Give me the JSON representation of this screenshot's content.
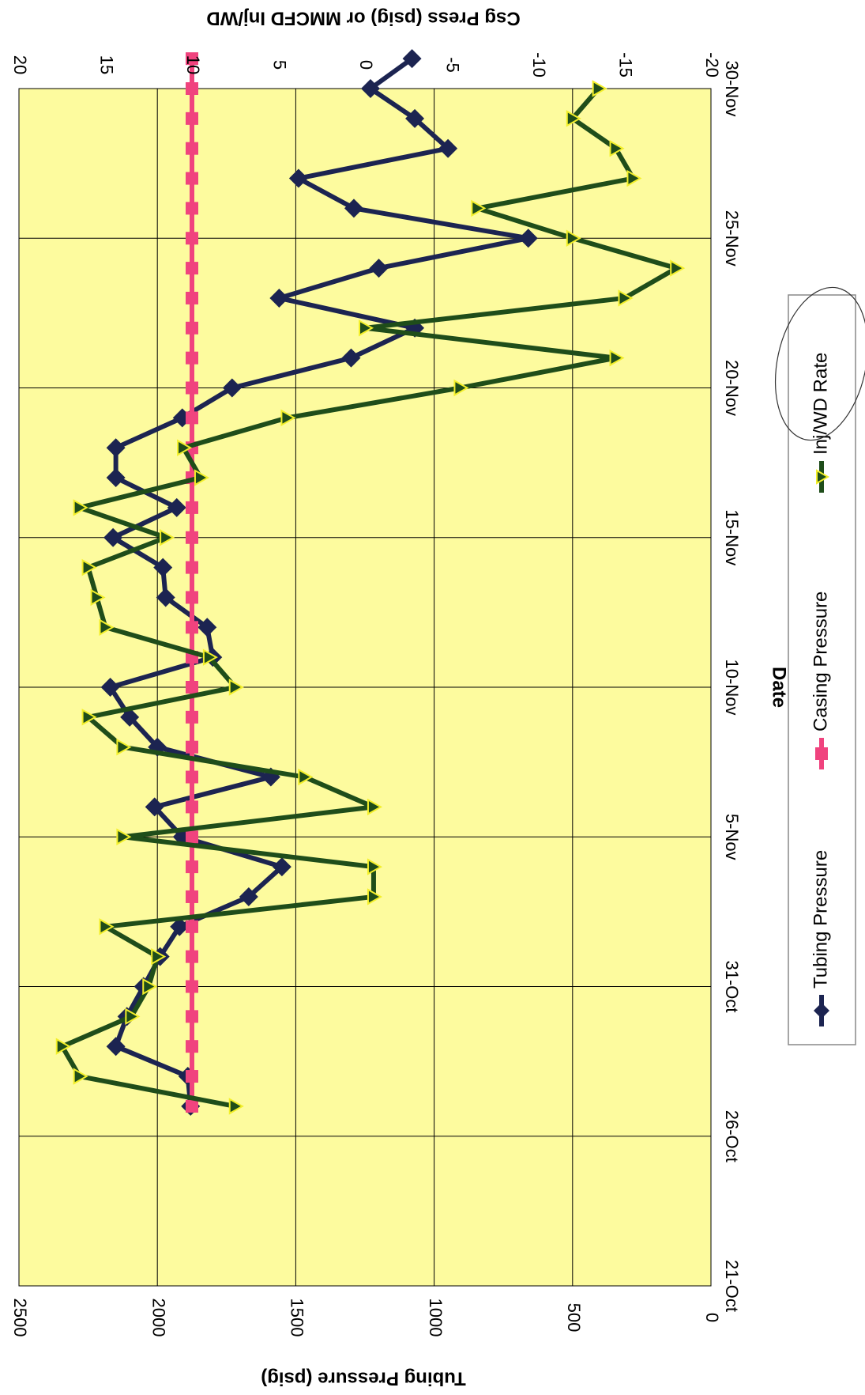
{
  "chart_data": {
    "type": "line",
    "orientation": "rotated-90-clockwise",
    "xlabel": "Date",
    "ylabel": "Tubing Pressure (psig)",
    "y2label": "Csg Press (psig)   or   MMCFD Inj/WD",
    "x_ticks": [
      "21-Oct",
      "26-Oct",
      "31-Oct",
      "5-Nov",
      "10-Nov",
      "15-Nov",
      "20-Nov",
      "25-Nov",
      "30-Nov"
    ],
    "xlim_days": [
      0,
      40
    ],
    "ylim": [
      0,
      2500
    ],
    "y_ticks": [
      "0",
      "500",
      "1000",
      "1500",
      "2000",
      "2500"
    ],
    "y2lim": [
      -20,
      20
    ],
    "y2_ticks": [
      "-20",
      "-15",
      "-10",
      "-5",
      "0",
      "5",
      "10",
      "15",
      "20"
    ],
    "grid": true,
    "plot_background": "#fdfb9e",
    "legend_position": "bottom",
    "series": [
      {
        "name": "Tubing Pressure",
        "axis": "left",
        "color": "#1c2451",
        "marker": "diamond",
        "points": [
          [
            6,
            1880
          ],
          [
            7,
            1890
          ],
          [
            8,
            2150
          ],
          [
            9,
            2110
          ],
          [
            10,
            2050
          ],
          [
            11,
            1990
          ],
          [
            12,
            1920
          ],
          [
            13,
            1670
          ],
          [
            14,
            1550
          ],
          [
            15,
            1910
          ],
          [
            16,
            2010
          ],
          [
            17,
            1590
          ],
          [
            18,
            2000
          ],
          [
            19,
            2100
          ],
          [
            20,
            2170
          ],
          [
            21,
            1800
          ],
          [
            22,
            1820
          ],
          [
            23,
            1970
          ],
          [
            24,
            1980
          ],
          [
            25,
            2160
          ],
          [
            26,
            1930
          ],
          [
            27,
            2150
          ],
          [
            28,
            2150
          ],
          [
            29,
            1910
          ],
          [
            30,
            1730
          ],
          [
            31,
            1300
          ],
          [
            32,
            1070
          ],
          [
            33,
            1560
          ],
          [
            34,
            1200
          ],
          [
            35,
            660
          ],
          [
            36,
            1290
          ],
          [
            37,
            1490
          ],
          [
            38,
            950
          ],
          [
            39,
            1070
          ],
          [
            40,
            1230
          ],
          [
            41,
            1080
          ]
        ]
      },
      {
        "name": "Casing Pressure",
        "axis": "right",
        "color": "#f0437e",
        "marker": "square",
        "points": [
          [
            6,
            10
          ],
          [
            7,
            10
          ],
          [
            8,
            10
          ],
          [
            9,
            10
          ],
          [
            10,
            10
          ],
          [
            11,
            10
          ],
          [
            12,
            10
          ],
          [
            13,
            10
          ],
          [
            14,
            10
          ],
          [
            15,
            10
          ],
          [
            16,
            10
          ],
          [
            17,
            10
          ],
          [
            18,
            10
          ],
          [
            19,
            10
          ],
          [
            20,
            10
          ],
          [
            21,
            10
          ],
          [
            22,
            10
          ],
          [
            23,
            10
          ],
          [
            24,
            10
          ],
          [
            25,
            10
          ],
          [
            26,
            10
          ],
          [
            27,
            10
          ],
          [
            28,
            10
          ],
          [
            29,
            10
          ],
          [
            30,
            10
          ],
          [
            31,
            10
          ],
          [
            32,
            10
          ],
          [
            33,
            10
          ],
          [
            34,
            10
          ],
          [
            35,
            10
          ],
          [
            36,
            10
          ],
          [
            37,
            10
          ],
          [
            38,
            10
          ],
          [
            39,
            10
          ],
          [
            40,
            10
          ],
          [
            41,
            10
          ]
        ]
      },
      {
        "name": "Inj/WD Rate",
        "axis": "right",
        "color": "#1f4d1a",
        "marker": "triangle",
        "points": [
          [
            6,
            7.5
          ],
          [
            7,
            16.5
          ],
          [
            8,
            17.5
          ],
          [
            9,
            13.5
          ],
          [
            10,
            12.5
          ],
          [
            11,
            12
          ],
          [
            12,
            15
          ],
          [
            13,
            -0.5
          ],
          [
            14,
            -0.5
          ],
          [
            15,
            14
          ],
          [
            16,
            -0.5
          ],
          [
            17,
            3.5
          ],
          [
            18,
            14
          ],
          [
            19,
            16
          ],
          [
            20,
            7.5
          ],
          [
            21,
            9
          ],
          [
            22,
            15
          ],
          [
            23,
            15.5
          ],
          [
            24,
            16
          ],
          [
            25,
            11.5
          ],
          [
            26,
            16.5
          ],
          [
            27,
            9.5
          ],
          [
            28,
            10.5
          ],
          [
            29,
            4.5
          ],
          [
            30,
            -5.5
          ],
          [
            31,
            -14.5
          ],
          [
            32,
            0
          ],
          [
            33,
            -15
          ],
          [
            34,
            -18
          ],
          [
            35,
            -12
          ],
          [
            36,
            -6.5
          ],
          [
            37,
            -15.5
          ],
          [
            38,
            -14.5
          ],
          [
            39,
            -12
          ],
          [
            40,
            -13.5
          ]
        ]
      }
    ]
  }
}
